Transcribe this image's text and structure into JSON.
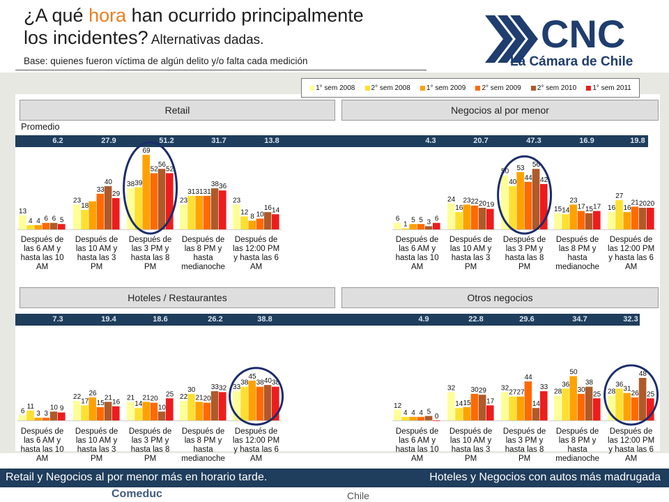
{
  "header": {
    "title_pre": "¿A qué ",
    "title_hl": "hora",
    "title_post1": " han ocurrido principalmente",
    "title_post2": "los incidentes?",
    "title_small": " Alternativas dadas.",
    "base": "Base: quienes fueron víctima de algún delito y/o falta cada medición"
  },
  "logo": {
    "main": "CNC",
    "sub": "La Cámara de Chile"
  },
  "legend": [
    {
      "label": "1° sem 2008",
      "color": "#ffff99"
    },
    {
      "label": "2° sem 2008",
      "color": "#ffe030"
    },
    {
      "label": "1° sem 2009",
      "color": "#ffa200"
    },
    {
      "label": "2° sem 2009",
      "color": "#ff6a00"
    },
    {
      "label": "2° sem 2010",
      "color": "#b05a2a"
    },
    {
      "label": "1° sem 2011",
      "color": "#ee1c1c"
    }
  ],
  "panels": {
    "retail": "Retail",
    "negocios": "Negocios al por menor",
    "hoteles": "Hoteles / Restaurantes",
    "otros": "Otros negocios"
  },
  "promedio_label": "Promedio",
  "averages": {
    "retail": [
      "6.2",
      "27.9",
      "51.2",
      "31.7",
      "13.8"
    ],
    "negocios": [
      "4.3",
      "20.7",
      "47.3",
      "16.9",
      "19.8"
    ],
    "hoteles": [
      "7.3",
      "19.4",
      "18.6",
      "26.2",
      "38.8"
    ],
    "otros": [
      "4.9",
      "22.8",
      "29.6",
      "34.7",
      "32.3"
    ]
  },
  "chart_data": [
    {
      "type": "bar",
      "title": "Retail",
      "categories": [
        "Después de las 6 AM y hasta las 10 AM",
        "Después de las 10 AM y hasta las 3 PM",
        "Después de las 3 PM y hasta las 8 PM",
        "Después de las 8 PM y hasta medianoche",
        "Después de las 12:00 PM y hasta las 6 AM"
      ],
      "series": [
        {
          "name": "1° sem 2008",
          "values": [
            13,
            23,
            38,
            23,
            23
          ]
        },
        {
          "name": "2° sem 2008",
          "values": [
            4,
            18,
            39,
            31,
            12
          ]
        },
        {
          "name": "1° sem 2009",
          "values": [
            4,
            26,
            69,
            31,
            8
          ]
        },
        {
          "name": "2° sem 2009",
          "values": [
            6,
            33,
            52,
            31,
            10
          ]
        },
        {
          "name": "2° sem 2010",
          "values": [
            6,
            40,
            56,
            38,
            16
          ]
        },
        {
          "name": "1° sem 2011",
          "values": [
            5,
            29,
            52,
            36,
            14
          ]
        }
      ],
      "labels": [
        [
          "13",
          "4",
          "4",
          "6",
          "6",
          "5"
        ],
        [
          "23",
          "18",
          "",
          "33",
          "40",
          "29"
        ],
        [
          "38",
          "39",
          "69",
          "52",
          "56",
          "52"
        ],
        [
          "23",
          "31",
          "31",
          "31",
          "38",
          "36"
        ],
        [
          "23",
          "12",
          "8",
          "10",
          "16",
          "14"
        ]
      ],
      "highlight": 2
    },
    {
      "type": "bar",
      "title": "Negocios al por menor",
      "categories": [
        "Después de las 6 AM y hasta las 10 AM",
        "Después de las 10 AM y hasta las 3 PM",
        "Después de las 3 PM y hasta las 8 PM",
        "Después de las 8 PM y hasta medianoche",
        "Después de las 12:00 PM y hasta las 6 AM"
      ],
      "series": [
        {
          "name": "1° sem 2008",
          "values": [
            6,
            24,
            50,
            15,
            16
          ]
        },
        {
          "name": "2° sem 2008",
          "values": [
            1,
            16,
            40,
            14,
            27
          ]
        },
        {
          "name": "1° sem 2009",
          "values": [
            5,
            23,
            53,
            23,
            16
          ]
        },
        {
          "name": "2° sem 2009",
          "values": [
            5,
            22,
            44,
            17,
            21
          ]
        },
        {
          "name": "2° sem 2010",
          "values": [
            3,
            20,
            56,
            15,
            20
          ]
        },
        {
          "name": "1° sem 2011",
          "values": [
            6,
            19,
            42,
            17,
            20
          ]
        }
      ],
      "labels": [
        [
          "6",
          "1",
          "5",
          "5",
          "3",
          "6"
        ],
        [
          "24",
          "16",
          "23",
          "22",
          "20",
          "19"
        ],
        [
          "50",
          "40",
          "53",
          "44",
          "56",
          "42"
        ],
        [
          "15",
          "14",
          "23",
          "17",
          "15",
          "17"
        ],
        [
          "16",
          "27",
          "16",
          "21",
          "20",
          "20"
        ]
      ],
      "highlight": 2
    },
    {
      "type": "bar",
      "title": "Hoteles / Restaurantes",
      "categories": [
        "Después de las 6 AM y hasta las 10 AM",
        "Después de las 10 AM y hasta las 3 PM",
        "Después de las 3 PM y hasta las 8 PM",
        "Después de las 8 PM y hasta medianoche",
        "Después de las 12:00 PM y hasta las 6 AM"
      ],
      "series": [
        {
          "name": "1° sem 2008",
          "values": [
            6,
            22,
            21,
            22,
            33
          ]
        },
        {
          "name": "2° sem 2008",
          "values": [
            11,
            17,
            14,
            30,
            38
          ]
        },
        {
          "name": "1° sem 2009",
          "values": [
            3,
            26,
            21,
            21,
            45
          ]
        },
        {
          "name": "2° sem 2009",
          "values": [
            3,
            15,
            20,
            20,
            38
          ]
        },
        {
          "name": "2° sem 2010",
          "values": [
            10,
            21,
            10,
            33,
            40
          ]
        },
        {
          "name": "1° sem 2011",
          "values": [
            9,
            16,
            25,
            32,
            38
          ]
        }
      ],
      "labels": [
        [
          "6",
          "11",
          "3",
          "3",
          "10",
          "9"
        ],
        [
          "22",
          "17",
          "26",
          "15",
          "21",
          "16"
        ],
        [
          "21",
          "14",
          "21",
          "20",
          "10",
          "25"
        ],
        [
          "22",
          "30",
          "21",
          "20",
          "33",
          "32"
        ],
        [
          "33",
          "38",
          "45",
          "38",
          "40",
          "38"
        ]
      ],
      "highlight": 4
    },
    {
      "type": "bar",
      "title": "Otros negocios",
      "categories": [
        "Después de las 6 AM y hasta las 10 AM",
        "Después de las 10 AM y hasta las 3 PM",
        "Después de las 3 PM y hasta las 8 PM",
        "Después de las 8 PM y hasta medianoche",
        "Después de las 12:00 PM y hasta las 6 AM"
      ],
      "series": [
        {
          "name": "1° sem 2008",
          "values": [
            12,
            32,
            32,
            28,
            28
          ]
        },
        {
          "name": "2° sem 2008",
          "values": [
            4,
            14,
            27,
            36,
            36
          ]
        },
        {
          "name": "1° sem 2009",
          "values": [
            4,
            15,
            27,
            50,
            31
          ]
        },
        {
          "name": "2° sem 2009",
          "values": [
            4,
            30,
            44,
            30,
            26
          ]
        },
        {
          "name": "2° sem 2010",
          "values": [
            5,
            29,
            14,
            38,
            48
          ]
        },
        {
          "name": "1° sem 2011",
          "values": [
            0,
            17,
            33,
            25,
            25
          ]
        }
      ],
      "labels": [
        [
          "12",
          "4",
          "4",
          "4",
          "5",
          "0"
        ],
        [
          "32",
          "14",
          "15",
          "30",
          "29",
          "17"
        ],
        [
          "32",
          "27",
          "27",
          "44",
          "14",
          "33"
        ],
        [
          "28",
          "36",
          "50",
          "30",
          "38",
          "25"
        ],
        [
          "28",
          "36",
          "31",
          "26",
          "48",
          "25"
        ]
      ],
      "highlight": 4
    }
  ],
  "footer": {
    "left": "Retail y Negocios al por menor más en horario tarde.",
    "right": "Hoteles y Negocios con autos más madrugada"
  },
  "sponsors": [
    "Comeduc",
    "Chile"
  ]
}
